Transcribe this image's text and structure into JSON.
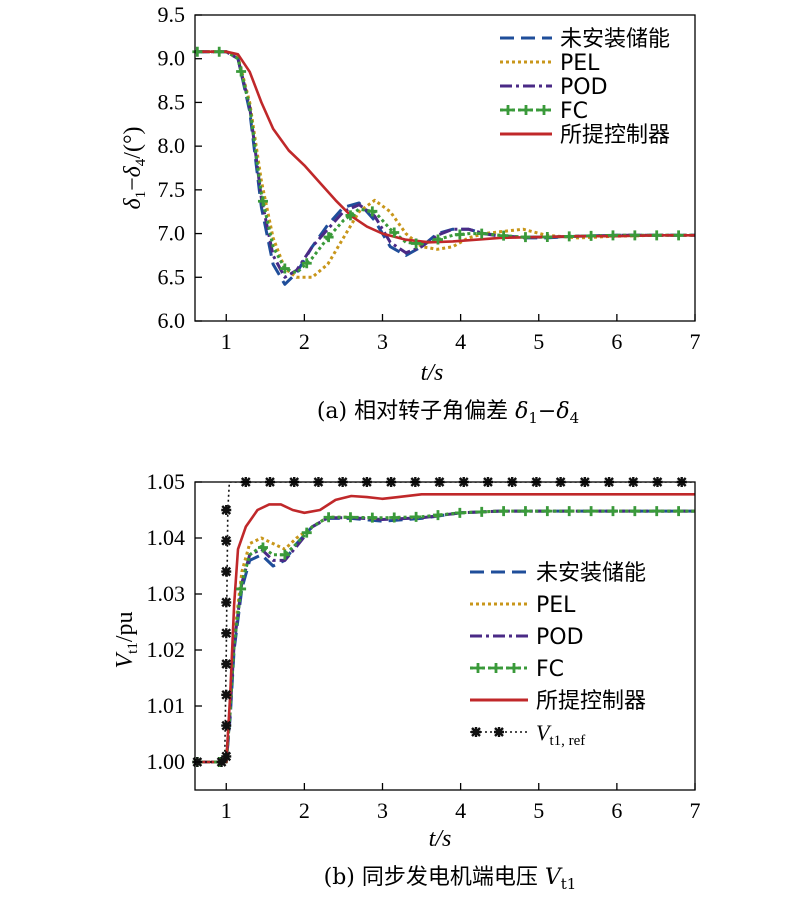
{
  "chart_data": [
    {
      "type": "line",
      "caption": "(a) 相对转子角偏差 δ1−δ4",
      "xlabel": "t/s",
      "ylabel": "δ1−δ4/(°)",
      "xlim": [
        0.6,
        7
      ],
      "ylim": [
        6.0,
        9.5
      ],
      "xticks": [
        1,
        2,
        3,
        4,
        5,
        6,
        7
      ],
      "yticks": [
        6.0,
        6.5,
        7.0,
        7.5,
        8.0,
        8.5,
        9.0,
        9.5
      ],
      "ytick_labels": [
        "6.0",
        "6.5",
        "7.0",
        "7.5",
        "8.0",
        "8.5",
        "9.0",
        "9.5"
      ],
      "legend_position": "top-right",
      "series": [
        {
          "name": "未安装储能",
          "color": "#1f4e9a",
          "style": "dash",
          "x": [
            0.6,
            1.0,
            1.15,
            1.3,
            1.45,
            1.6,
            1.75,
            1.9,
            2.1,
            2.3,
            2.5,
            2.7,
            2.9,
            3.1,
            3.3,
            3.5,
            3.7,
            3.9,
            4.1,
            4.3,
            4.5,
            4.8,
            5.1,
            5.5,
            6.0,
            6.5,
            7.0
          ],
          "y": [
            9.08,
            9.08,
            9.0,
            8.4,
            7.3,
            6.65,
            6.42,
            6.55,
            6.85,
            7.1,
            7.3,
            7.35,
            7.15,
            6.85,
            6.75,
            6.85,
            7.0,
            7.05,
            7.05,
            7.0,
            6.98,
            6.95,
            6.95,
            6.97,
            6.98,
            6.98,
            6.98
          ]
        },
        {
          "name": "PEL",
          "color": "#c8961a",
          "style": "dot",
          "x": [
            0.6,
            1.0,
            1.15,
            1.3,
            1.45,
            1.6,
            1.75,
            1.9,
            2.1,
            2.3,
            2.5,
            2.7,
            2.9,
            3.1,
            3.3,
            3.5,
            3.7,
            3.9,
            4.1,
            4.3,
            4.5,
            4.8,
            5.1,
            5.5,
            6.0,
            6.5,
            7.0
          ],
          "y": [
            9.08,
            9.08,
            9.02,
            8.5,
            7.6,
            6.95,
            6.6,
            6.5,
            6.5,
            6.65,
            6.95,
            7.25,
            7.38,
            7.25,
            7.0,
            6.85,
            6.82,
            6.85,
            6.95,
            7.0,
            7.02,
            7.05,
            6.98,
            6.95,
            6.97,
            6.98,
            6.98
          ]
        },
        {
          "name": "POD",
          "color": "#4a2a86",
          "style": "dashdot",
          "x": [
            0.6,
            1.0,
            1.15,
            1.3,
            1.45,
            1.6,
            1.75,
            1.9,
            2.1,
            2.3,
            2.5,
            2.7,
            2.9,
            3.1,
            3.3,
            3.5,
            3.7,
            3.9,
            4.1,
            4.3,
            4.5,
            4.8,
            5.1,
            5.5,
            6.0,
            6.5,
            7.0
          ],
          "y": [
            9.08,
            9.08,
            9.0,
            8.45,
            7.4,
            6.75,
            6.5,
            6.58,
            6.85,
            7.05,
            7.25,
            7.33,
            7.2,
            6.9,
            6.78,
            6.85,
            6.98,
            7.05,
            7.05,
            7.0,
            6.97,
            6.96,
            6.96,
            6.97,
            6.98,
            6.98,
            6.98
          ]
        },
        {
          "name": "FC",
          "color": "#3a9a3a",
          "style": "plus",
          "x": [
            0.6,
            1.0,
            1.15,
            1.3,
            1.45,
            1.6,
            1.75,
            1.9,
            2.1,
            2.3,
            2.5,
            2.7,
            2.9,
            3.1,
            3.3,
            3.5,
            3.7,
            3.9,
            4.1,
            4.3,
            4.5,
            4.8,
            5.1,
            5.5,
            6.0,
            6.5,
            7.0
          ],
          "y": [
            9.08,
            9.08,
            9.0,
            8.45,
            7.45,
            6.85,
            6.6,
            6.55,
            6.72,
            6.95,
            7.15,
            7.28,
            7.25,
            7.05,
            6.9,
            6.88,
            6.93,
            6.98,
            7.0,
            7.0,
            6.98,
            6.96,
            6.96,
            6.97,
            6.98,
            6.98,
            6.98
          ]
        },
        {
          "name": "所提控制器",
          "color": "#c0282a",
          "style": "solid",
          "x": [
            0.6,
            1.0,
            1.15,
            1.3,
            1.45,
            1.6,
            1.8,
            2.0,
            2.2,
            2.4,
            2.6,
            2.8,
            3.0,
            3.3,
            3.6,
            3.9,
            4.2,
            4.5,
            5.0,
            5.5,
            6.0,
            6.5,
            7.0
          ],
          "y": [
            9.08,
            9.08,
            9.05,
            8.85,
            8.5,
            8.2,
            7.95,
            7.78,
            7.58,
            7.38,
            7.2,
            7.08,
            7.0,
            6.93,
            6.9,
            6.91,
            6.93,
            6.95,
            6.96,
            6.97,
            6.97,
            6.98,
            6.98
          ]
        }
      ]
    },
    {
      "type": "line",
      "caption": "(b) 同步发电机端电压 Vt1",
      "xlabel": "t/s",
      "ylabel": "Vt1/pu",
      "xlim": [
        0.6,
        7
      ],
      "ylim": [
        0.995,
        1.05
      ],
      "xticks": [
        1,
        2,
        3,
        4,
        5,
        6,
        7
      ],
      "yticks": [
        1.0,
        1.01,
        1.02,
        1.03,
        1.04,
        1.05
      ],
      "ytick_labels": [
        "1.00",
        "1.01",
        "1.02",
        "1.03",
        "1.04",
        "1.05"
      ],
      "legend_position": "center-right",
      "series": [
        {
          "name": "未安装储能",
          "color": "#1f4e9a",
          "style": "dash",
          "x": [
            0.6,
            1.0,
            1.05,
            1.1,
            1.2,
            1.3,
            1.45,
            1.6,
            1.75,
            1.9,
            2.1,
            2.3,
            2.6,
            3.0,
            3.5,
            4.0,
            4.5,
            5.0,
            5.5,
            6.0,
            6.5,
            7.0
          ],
          "y": [
            1.0,
            1.0,
            1.008,
            1.02,
            1.031,
            1.036,
            1.037,
            1.035,
            1.036,
            1.039,
            1.042,
            1.0435,
            1.0435,
            1.043,
            1.0435,
            1.0445,
            1.0448,
            1.0448,
            1.0448,
            1.0448,
            1.0448,
            1.0448
          ]
        },
        {
          "name": "PEL",
          "color": "#c8961a",
          "style": "dot",
          "x": [
            0.6,
            1.0,
            1.05,
            1.1,
            1.2,
            1.3,
            1.45,
            1.6,
            1.75,
            1.9,
            2.1,
            2.3,
            2.6,
            3.0,
            3.5,
            4.0,
            4.5,
            5.0,
            5.5,
            6.0,
            6.5,
            7.0
          ],
          "y": [
            1.0,
            1.0,
            1.01,
            1.022,
            1.034,
            1.039,
            1.04,
            1.039,
            1.038,
            1.04,
            1.042,
            1.0437,
            1.0437,
            1.0435,
            1.0437,
            1.0445,
            1.0448,
            1.0448,
            1.0448,
            1.0448,
            1.0448,
            1.0448
          ]
        },
        {
          "name": "POD",
          "color": "#4a2a86",
          "style": "dashdot",
          "x": [
            0.6,
            1.0,
            1.05,
            1.1,
            1.2,
            1.3,
            1.45,
            1.6,
            1.75,
            1.9,
            2.1,
            2.3,
            2.6,
            3.0,
            3.5,
            4.0,
            4.5,
            5.0,
            5.5,
            6.0,
            6.5,
            7.0
          ],
          "y": [
            1.0,
            1.0,
            1.009,
            1.021,
            1.032,
            1.037,
            1.038,
            1.036,
            1.036,
            1.0385,
            1.042,
            1.0436,
            1.0436,
            1.0433,
            1.0436,
            1.0445,
            1.0448,
            1.0448,
            1.0448,
            1.0448,
            1.0448,
            1.0448
          ]
        },
        {
          "name": "FC",
          "color": "#3a9a3a",
          "style": "plus",
          "x": [
            0.6,
            1.0,
            1.05,
            1.1,
            1.2,
            1.3,
            1.45,
            1.6,
            1.75,
            1.9,
            2.1,
            2.3,
            2.6,
            3.0,
            3.5,
            4.0,
            4.5,
            5.0,
            5.5,
            6.0,
            6.5,
            7.0
          ],
          "y": [
            1.0,
            1.0,
            1.009,
            1.021,
            1.032,
            1.037,
            1.0385,
            1.037,
            1.037,
            1.039,
            1.042,
            1.0437,
            1.0437,
            1.0436,
            1.0438,
            1.0445,
            1.0448,
            1.0448,
            1.0448,
            1.0448,
            1.0448,
            1.0448
          ]
        },
        {
          "name": "所提控制器",
          "color": "#c0282a",
          "style": "solid",
          "x": [
            0.6,
            1.0,
            1.05,
            1.1,
            1.15,
            1.25,
            1.4,
            1.55,
            1.7,
            1.85,
            2.0,
            2.2,
            2.4,
            2.6,
            2.8,
            3.0,
            3.2,
            3.5,
            4.0,
            4.5,
            5.0,
            5.5,
            6.0,
            6.5,
            7.0
          ],
          "y": [
            1.0,
            1.0,
            1.012,
            1.028,
            1.038,
            1.042,
            1.045,
            1.046,
            1.046,
            1.045,
            1.0445,
            1.045,
            1.0468,
            1.0475,
            1.0473,
            1.047,
            1.0473,
            1.0478,
            1.0478,
            1.0478,
            1.0478,
            1.0478,
            1.0478,
            1.0478,
            1.0478
          ]
        },
        {
          "name": "Vt1, ref",
          "color": "#111111",
          "style": "star",
          "x": [
            0.6,
            0.98,
            1.0,
            1.02,
            1.04,
            7.0
          ],
          "y": [
            1.0,
            1.0,
            1.02,
            1.045,
            1.05,
            1.05
          ]
        }
      ]
    }
  ]
}
